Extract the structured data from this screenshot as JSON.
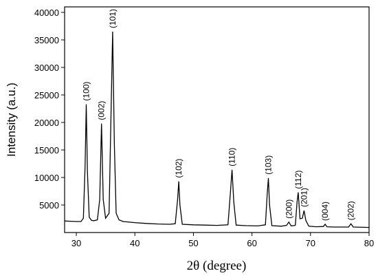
{
  "chart_data": {
    "type": "line",
    "xlabel": "2θ (degree)",
    "ylabel": "Intensity (a.u.)",
    "xlim": [
      28,
      80
    ],
    "ylim": [
      0,
      41000
    ],
    "xticks": [
      30,
      40,
      50,
      60,
      70,
      80
    ],
    "yticks": [
      5000,
      10000,
      15000,
      20000,
      25000,
      30000,
      35000,
      40000
    ],
    "series": [
      {
        "color": "#000000",
        "x": [
          28,
          29,
          30,
          30.8,
          31.2,
          31.5,
          31.7,
          31.9,
          32.2,
          32.6,
          33,
          33.6,
          34.0,
          34.3,
          34.6,
          35.0,
          35.6,
          35.9,
          36.2,
          36.5,
          36.8,
          37.3,
          38,
          40,
          42,
          44,
          46,
          46.9,
          47.3,
          47.5,
          47.7,
          48.1,
          50,
          52,
          54,
          55.9,
          56.3,
          56.6,
          56.9,
          57.3,
          59,
          61,
          62.3,
          62.6,
          62.8,
          63.0,
          63.4,
          65,
          65.9,
          66.3,
          66.7,
          67.4,
          67.7,
          67.9,
          68.2,
          68.6,
          68.9,
          69.2,
          69.7,
          71,
          72.2,
          72.5,
          72.8,
          74,
          76.5,
          76.9,
          77.3,
          79,
          80
        ],
        "values": [
          2100,
          2050,
          2000,
          2000,
          2600,
          12000,
          23300,
          11000,
          2800,
          2200,
          2150,
          2300,
          6000,
          19800,
          6000,
          2600,
          3500,
          20000,
          36500,
          16000,
          3500,
          2300,
          2000,
          1800,
          1650,
          1550,
          1500,
          1600,
          6000,
          9300,
          5000,
          1500,
          1400,
          1350,
          1300,
          1400,
          7000,
          11400,
          5500,
          1350,
          1250,
          1200,
          1400,
          7000,
          9900,
          5000,
          1250,
          1150,
          1300,
          1900,
          1200,
          1300,
          5500,
          7300,
          2500,
          2600,
          4000,
          2200,
          1150,
          1050,
          1100,
          1500,
          1050,
          1000,
          1000,
          1600,
          1000,
          950,
          920
        ]
      }
    ],
    "annotations": [
      {
        "text": "(100)",
        "x": 31.7,
        "y": 23300
      },
      {
        "text": "(002)",
        "x": 34.3,
        "y": 19800
      },
      {
        "text": "(101)",
        "x": 36.2,
        "y": 36500
      },
      {
        "text": "(102)",
        "x": 47.5,
        "y": 9300
      },
      {
        "text": "(110)",
        "x": 56.6,
        "y": 11400
      },
      {
        "text": "(103)",
        "x": 62.8,
        "y": 9900
      },
      {
        "text": "(200)",
        "x": 66.3,
        "y": 1900
      },
      {
        "text": "(112)",
        "x": 67.9,
        "y": 7300
      },
      {
        "text": "(201)",
        "x": 68.9,
        "y": 4000
      },
      {
        "text": "(004)",
        "x": 72.5,
        "y": 1500
      },
      {
        "text": "(202)",
        "x": 76.9,
        "y": 1600
      }
    ]
  }
}
